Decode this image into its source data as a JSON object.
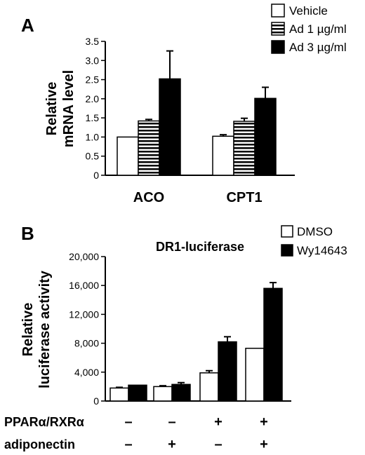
{
  "chart_data": [
    {
      "panel": "A",
      "type": "bar",
      "title": "",
      "ylabel_lines": [
        "Relative",
        "mRNA level"
      ],
      "xlabel": "",
      "ylim": [
        0,
        3.5
      ],
      "yticks": [
        "0",
        "0.5",
        "1.0",
        "1.5",
        "2.0",
        "2.5",
        "3.0",
        "3.5"
      ],
      "categories": [
        "ACO",
        "CPT1"
      ],
      "series": [
        {
          "name": "Vehicle",
          "fill": "white",
          "values": [
            1.0,
            1.02
          ],
          "errors": [
            0,
            0.04
          ]
        },
        {
          "name": "Ad 1 µg/ml",
          "fill": "striped",
          "values": [
            1.42,
            1.41
          ],
          "errors": [
            0.04,
            0.08
          ]
        },
        {
          "name": "Ad 3 µg/ml",
          "fill": "black",
          "values": [
            2.52,
            2.01
          ],
          "errors": [
            0.73,
            0.29
          ]
        }
      ],
      "legend_position": "top-right",
      "grid": false
    },
    {
      "panel": "B",
      "type": "bar",
      "title": "DR1-luciferase",
      "ylabel_lines": [
        "Relative",
        "luciferase activity"
      ],
      "xlabel": "",
      "ylim": [
        0,
        20000
      ],
      "yticks": [
        "0",
        "4,000",
        "8,000",
        "12,000",
        "16,000",
        "20,000"
      ],
      "groups": 4,
      "series": [
        {
          "name": "DMSO",
          "fill": "white",
          "values": [
            1800,
            2000,
            3900,
            7300
          ],
          "errors": [
            100,
            120,
            300,
            0
          ]
        },
        {
          "name": "Wy14643",
          "fill": "black",
          "values": [
            2200,
            2300,
            8200,
            15600
          ],
          "errors": [
            0,
            250,
            700,
            800
          ]
        }
      ],
      "conditions": [
        {
          "label": "PPARα/RXRα",
          "signs": [
            "–",
            "–",
            "+",
            "+"
          ]
        },
        {
          "label": "adiponectin",
          "signs": [
            "–",
            "+",
            "–",
            "+"
          ]
        }
      ],
      "legend_position": "top-right",
      "grid": false
    }
  ]
}
